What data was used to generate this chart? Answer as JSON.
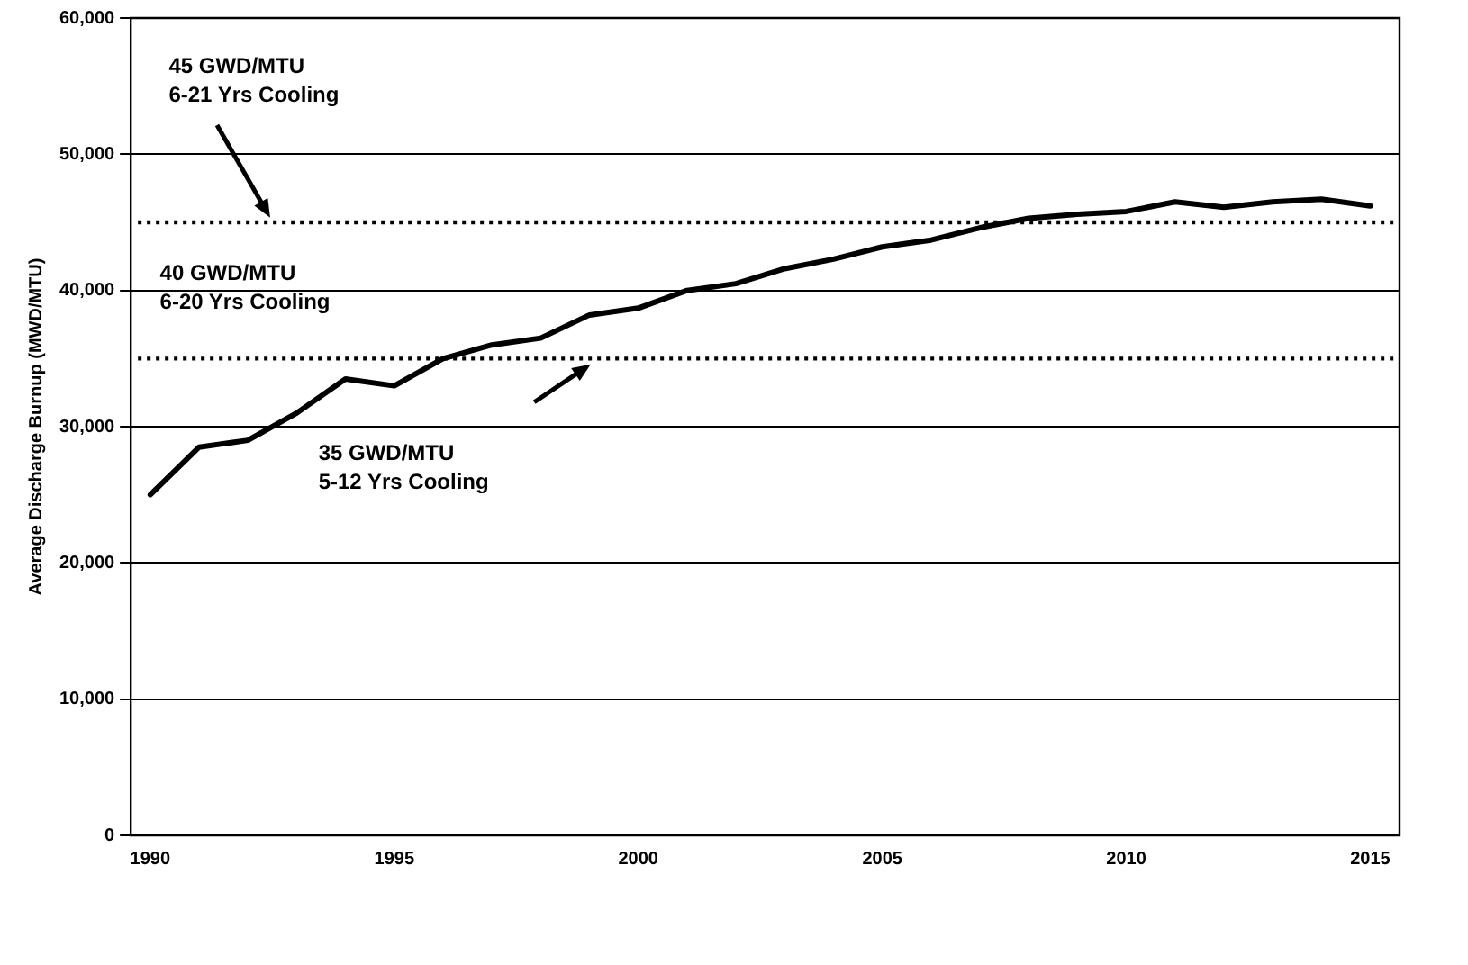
{
  "chart_data": {
    "type": "line",
    "ylabel": "Average Discharge Burnup (MWD/MTU)",
    "x": [
      1990,
      1991,
      1992,
      1993,
      1994,
      1995,
      1996,
      1997,
      1998,
      1999,
      2000,
      2001,
      2002,
      2003,
      2004,
      2005,
      2006,
      2007,
      2008,
      2009,
      2010,
      2011,
      2012,
      2013,
      2014,
      2015
    ],
    "series": [
      {
        "color": "#000000",
        "values": [
          25000,
          28500,
          29000,
          31000,
          33500,
          33000,
          35000,
          36000,
          36500,
          38200,
          38700,
          40000,
          40500,
          41600,
          42300,
          43200,
          43700,
          44600,
          45300,
          45600,
          45800,
          46500,
          46100,
          46500,
          46700,
          46200
        ]
      }
    ],
    "xlim": [
      1989.6,
      2015.6
    ],
    "xticks": [
      1990,
      1995,
      2000,
      2005,
      2010,
      2015
    ],
    "ylim": [
      0,
      60000
    ],
    "yticks": [
      0,
      {
        "value": 10000,
        "label": "10,000"
      },
      {
        "value": 20000,
        "label": "20,000"
      },
      {
        "value": 30000,
        "label": "30,000"
      },
      {
        "value": 40000,
        "label": "40,000"
      },
      {
        "value": 50000,
        "label": "50,000"
      },
      {
        "value": 60000,
        "label": "60,000"
      }
    ],
    "ref_lines": [
      {
        "axis": "y",
        "value": 45000,
        "color": "#000000",
        "line_style": "dotted"
      },
      {
        "axis": "y",
        "value": 35000,
        "color": "#000000",
        "line_style": "dotted"
      }
    ],
    "annotations": [
      "45 GWD/MTU\n6-21 Yrs Cooling",
      "40 GWD/MTU\n6-20 Yrs Cooling",
      "35 GWD/MTU\n5-12 Yrs Cooling"
    ],
    "grid": "y",
    "legend": false,
    "marker": "none",
    "line_style": "solid"
  }
}
